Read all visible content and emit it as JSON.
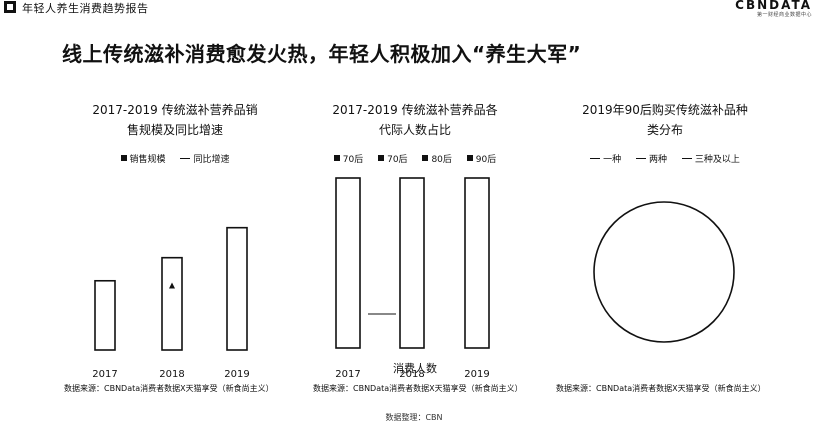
{
  "header": {
    "report_title": "年轻人养生消费趋势报告",
    "logo": "CBNDATA",
    "logo_sub": "第一财经商业数据中心"
  },
  "headline": "线上传统滋补消费愈发火热，年轻人积极加入“养生大军”",
  "source_text": "数据来源：CBNData消费者数据X天猫享受（新食尚主义）",
  "page_note": "数据整理：CBN",
  "chart_data": [
    {
      "type": "bar",
      "title_line1": "2017-2019 传统滋补营养品销",
      "title_line2": "售规模及同比增速",
      "legend": [
        "销售规模",
        "同比增速"
      ],
      "categories": [
        "2017",
        "2018",
        "2019"
      ],
      "series": [
        {
          "name": "销售规模",
          "values": [
            60,
            80,
            106
          ]
        },
        {
          "name": "同比增速",
          "values": [
            null,
            55,
            null
          ]
        }
      ],
      "ylim": [
        0,
        130
      ],
      "grid": false,
      "legend_position": "top"
    },
    {
      "type": "bar",
      "title_line1": "2017-2019 传统滋补营养品各",
      "title_line2": "代际人数占比",
      "legend": [
        "70后",
        "70后",
        "80后",
        "90后"
      ],
      "categories": [
        "2017",
        "2018",
        "2019"
      ],
      "series": [
        {
          "name": "total",
          "values": [
            100,
            100,
            100
          ]
        }
      ],
      "ylim": [
        0,
        100
      ],
      "xlabel": "消费人数",
      "grid": false,
      "legend_position": "top"
    },
    {
      "type": "pie",
      "title_line1": "2019年90后购买传统滋补品种",
      "title_line2": "类分布",
      "legend": [
        "一种",
        "两种",
        "三种及以上"
      ],
      "slices": [],
      "legend_position": "top"
    }
  ]
}
